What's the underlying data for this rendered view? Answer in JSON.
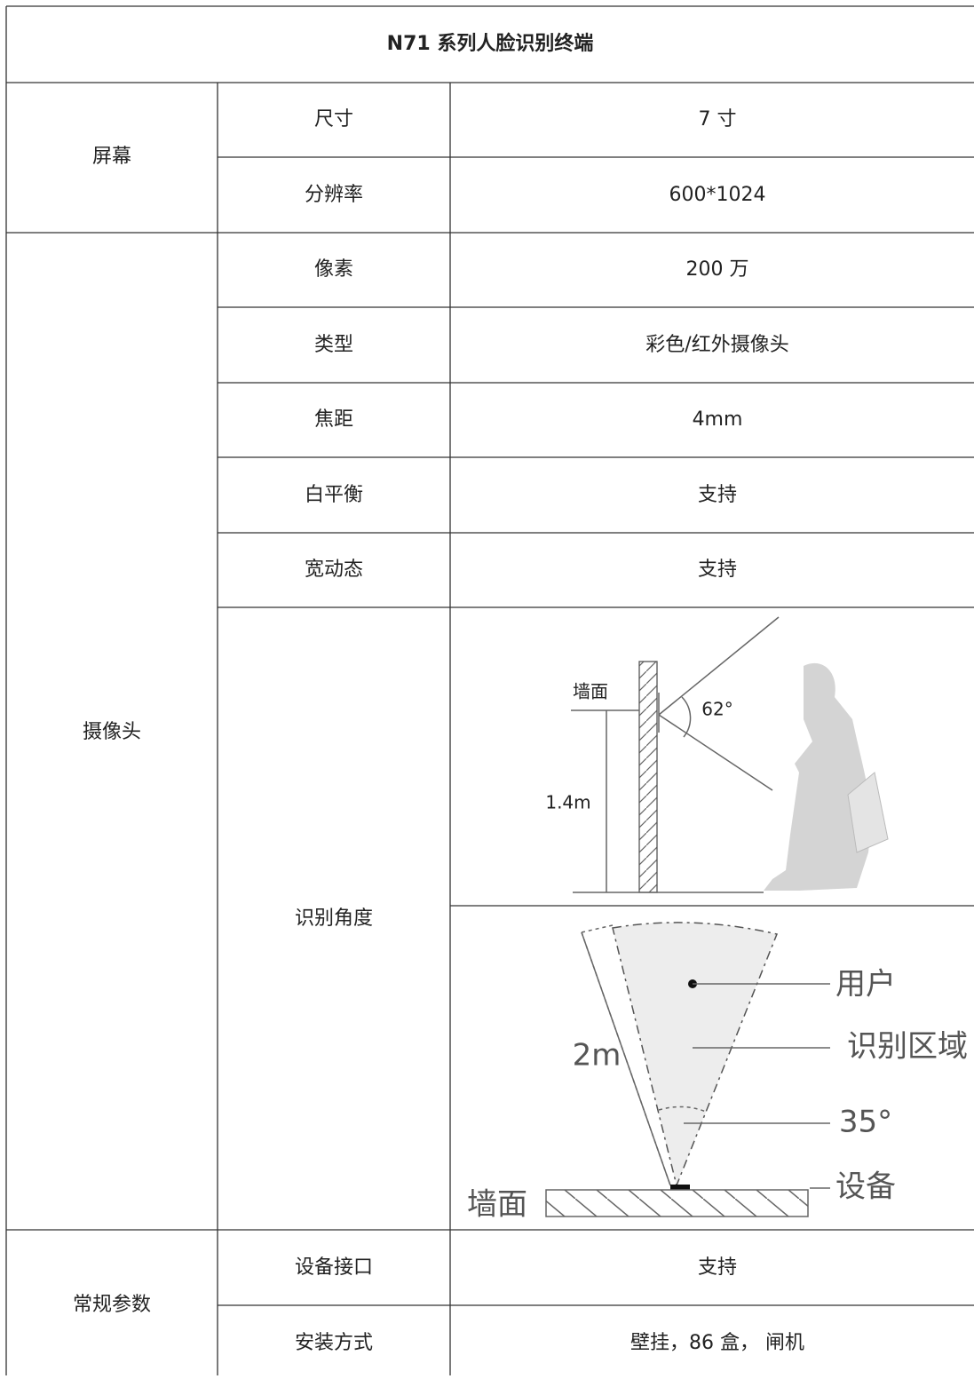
{
  "header": {
    "title": "N71 系列人脸识别终端"
  },
  "table": {
    "groups": [
      {
        "name": "屏幕",
        "rows": [
          {
            "param": "尺寸",
            "value": "7 寸"
          },
          {
            "param": "分辨率",
            "value": "600*1024"
          }
        ]
      },
      {
        "name": "摄像头",
        "rows": [
          {
            "param": "像素",
            "value": "200 万"
          },
          {
            "param": "类型",
            "value": "彩色/红外摄像头"
          },
          {
            "param": "焦距",
            "value": "4mm"
          },
          {
            "param": "白平衡",
            "value": "支持"
          },
          {
            "param": "宽动态",
            "value": "支持"
          },
          {
            "param": "识别角度"
          }
        ]
      },
      {
        "name": "常规参数",
        "rows": [
          {
            "param": "设备接口",
            "value": "支持"
          },
          {
            "param": "安装方式",
            "value": "壁挂，86 盒， 闸机"
          }
        ]
      }
    ]
  },
  "diagram_side": {
    "wall": "墙面",
    "angle": "62°",
    "height": "1.4m"
  },
  "diagram_top": {
    "user": "用户",
    "zone": "识别区域",
    "distance": "2m",
    "angle": "35°",
    "device": "设备",
    "wall": "墙面"
  }
}
